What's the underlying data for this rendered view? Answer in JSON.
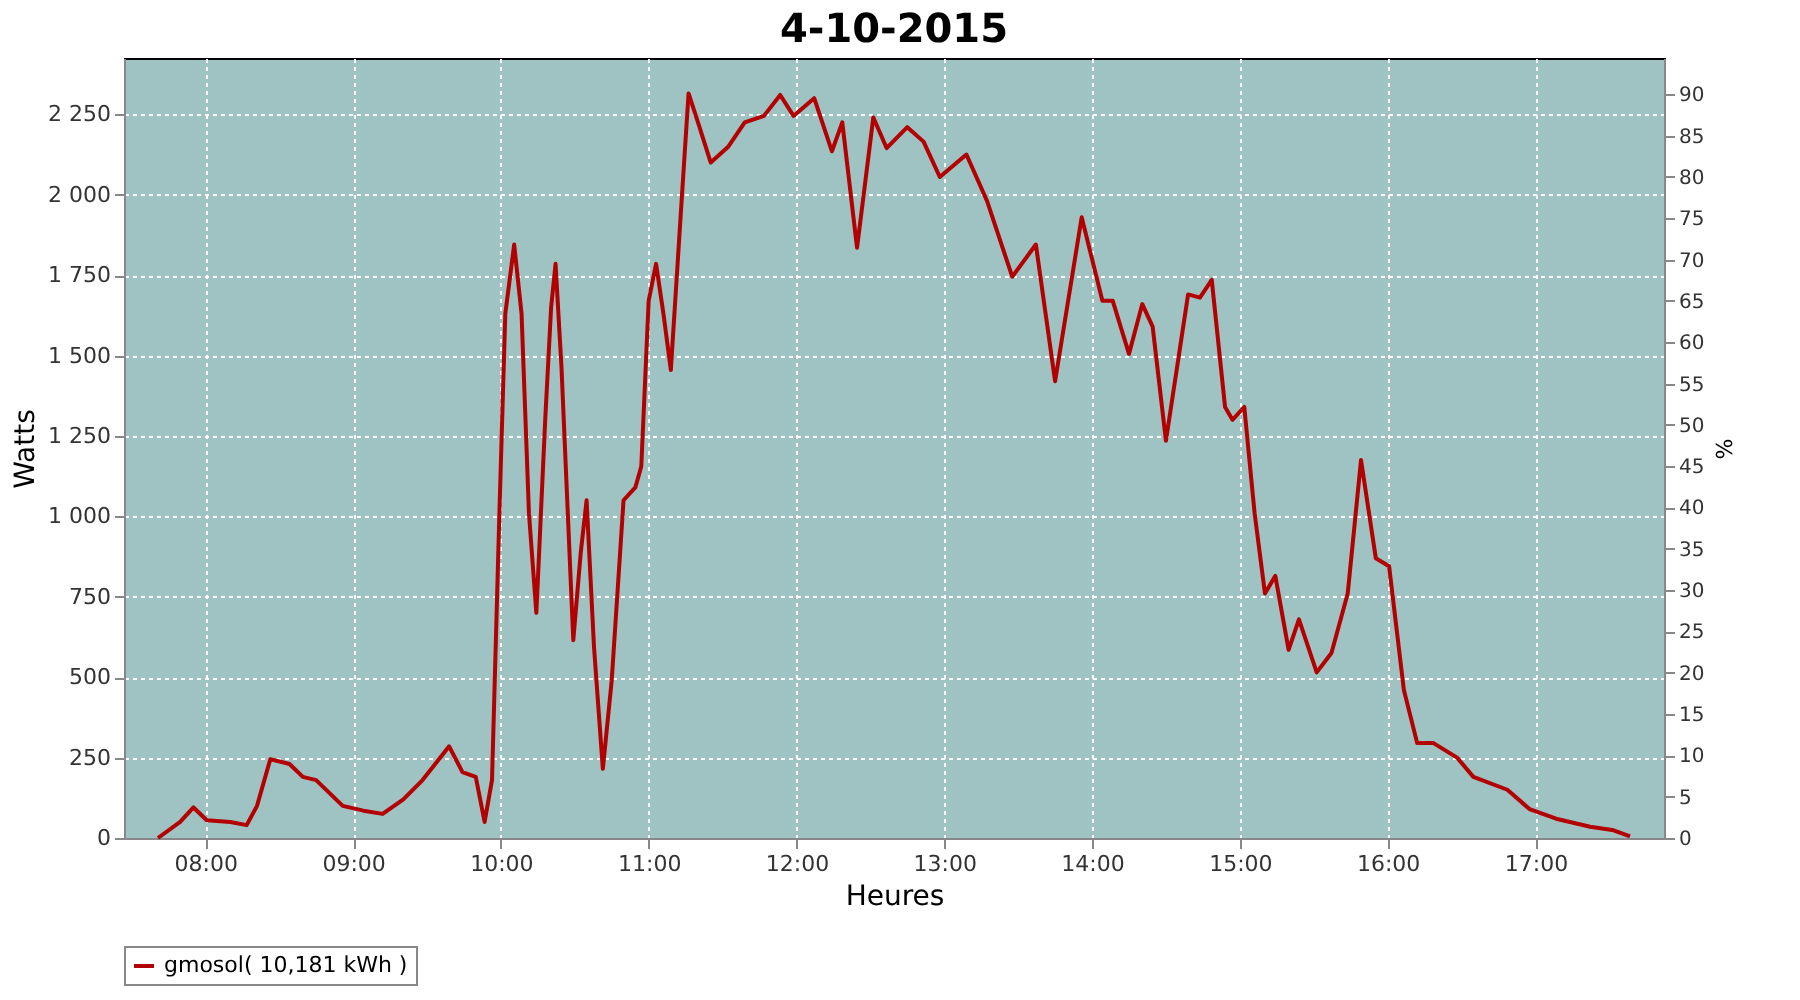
{
  "chart_data": {
    "type": "line",
    "title": "4-10-2015",
    "xlabel": "Heures",
    "ylabel": "Watts",
    "y2label": "%",
    "xlim": [
      7.45,
      17.87
    ],
    "xticks": [
      {
        "value": 8,
        "label": "08:00"
      },
      {
        "value": 9,
        "label": "09:00"
      },
      {
        "value": 10,
        "label": "10:00"
      },
      {
        "value": 11,
        "label": "11:00"
      },
      {
        "value": 12,
        "label": "12:00"
      },
      {
        "value": 13,
        "label": "13:00"
      },
      {
        "value": 14,
        "label": "14:00"
      },
      {
        "value": 15,
        "label": "15:00"
      },
      {
        "value": 16,
        "label": "16:00"
      },
      {
        "value": 17,
        "label": "17:00"
      }
    ],
    "ylim": [
      0,
      2425
    ],
    "yticks": [
      0,
      250,
      500,
      750,
      {
        "value": 1000,
        "label": "1 000"
      },
      {
        "value": 1250,
        "label": "1 250"
      },
      {
        "value": 1500,
        "label": "1 500"
      },
      {
        "value": 1750,
        "label": "1 750"
      },
      {
        "value": 2000,
        "label": "2 000"
      },
      {
        "value": 2250,
        "label": "2 250"
      }
    ],
    "y2lim": [
      0,
      94.4
    ],
    "y2ticks": [
      0,
      5,
      10,
      15,
      20,
      25,
      30,
      35,
      40,
      45,
      50,
      55,
      60,
      65,
      70,
      75,
      80,
      85,
      90
    ],
    "grid": true,
    "legend": "bottom",
    "line_style": "solid",
    "marker": "none",
    "series": [
      {
        "name": "gmosol( 10,181 kWh )",
        "color": "#b30000",
        "x": [
          7.68,
          7.83,
          7.92,
          8.01,
          8.17,
          8.28,
          8.35,
          8.44,
          8.57,
          8.66,
          8.75,
          8.93,
          9.07,
          9.2,
          9.34,
          9.47,
          9.65,
          9.74,
          9.83,
          9.89,
          9.94,
          9.99,
          10.03,
          10.09,
          10.14,
          10.19,
          10.24,
          10.3,
          10.34,
          10.37,
          10.41,
          10.49,
          10.54,
          10.58,
          10.63,
          10.69,
          10.75,
          10.83,
          10.91,
          10.95,
          11.0,
          11.05,
          11.1,
          11.15,
          11.22,
          11.27,
          11.33,
          11.42,
          11.54,
          11.65,
          11.78,
          11.89,
          11.98,
          12.12,
          12.24,
          12.31,
          12.41,
          12.52,
          12.61,
          12.75,
          12.86,
          12.97,
          13.15,
          13.29,
          13.46,
          13.62,
          13.75,
          13.93,
          14.07,
          14.14,
          14.25,
          14.34,
          14.41,
          14.5,
          14.65,
          14.73,
          14.81,
          14.9,
          14.95,
          15.03,
          15.1,
          15.17,
          15.24,
          15.33,
          15.4,
          15.52,
          15.62,
          15.73,
          15.82,
          15.92,
          16.01,
          16.11,
          16.2,
          16.31,
          16.47,
          16.58,
          16.81,
          16.96,
          17.14,
          17.37,
          17.52,
          17.64
        ],
        "values": [
          0,
          50,
          95,
          55,
          50,
          40,
          100,
          245,
          230,
          190,
          180,
          100,
          85,
          75,
          120,
          180,
          285,
          205,
          190,
          50,
          180,
          1010,
          1630,
          1845,
          1630,
          1010,
          700,
          1300,
          1650,
          1785,
          1465,
          615,
          885,
          1050,
          595,
          215,
          490,
          1050,
          1090,
          1155,
          1670,
          1785,
          1630,
          1455,
          1960,
          2315,
          2230,
          2100,
          2150,
          2225,
          2245,
          2310,
          2245,
          2300,
          2135,
          2225,
          1835,
          2240,
          2145,
          2210,
          2165,
          2055,
          2125,
          1980,
          1745,
          1845,
          1420,
          1930,
          1670,
          1670,
          1505,
          1660,
          1590,
          1235,
          1690,
          1680,
          1735,
          1340,
          1300,
          1340,
          1010,
          760,
          815,
          585,
          680,
          515,
          575,
          760,
          1175,
          870,
          845,
          460,
          295,
          295,
          250,
          190,
          150,
          90,
          60,
          35,
          25,
          5
        ]
      }
    ]
  }
}
